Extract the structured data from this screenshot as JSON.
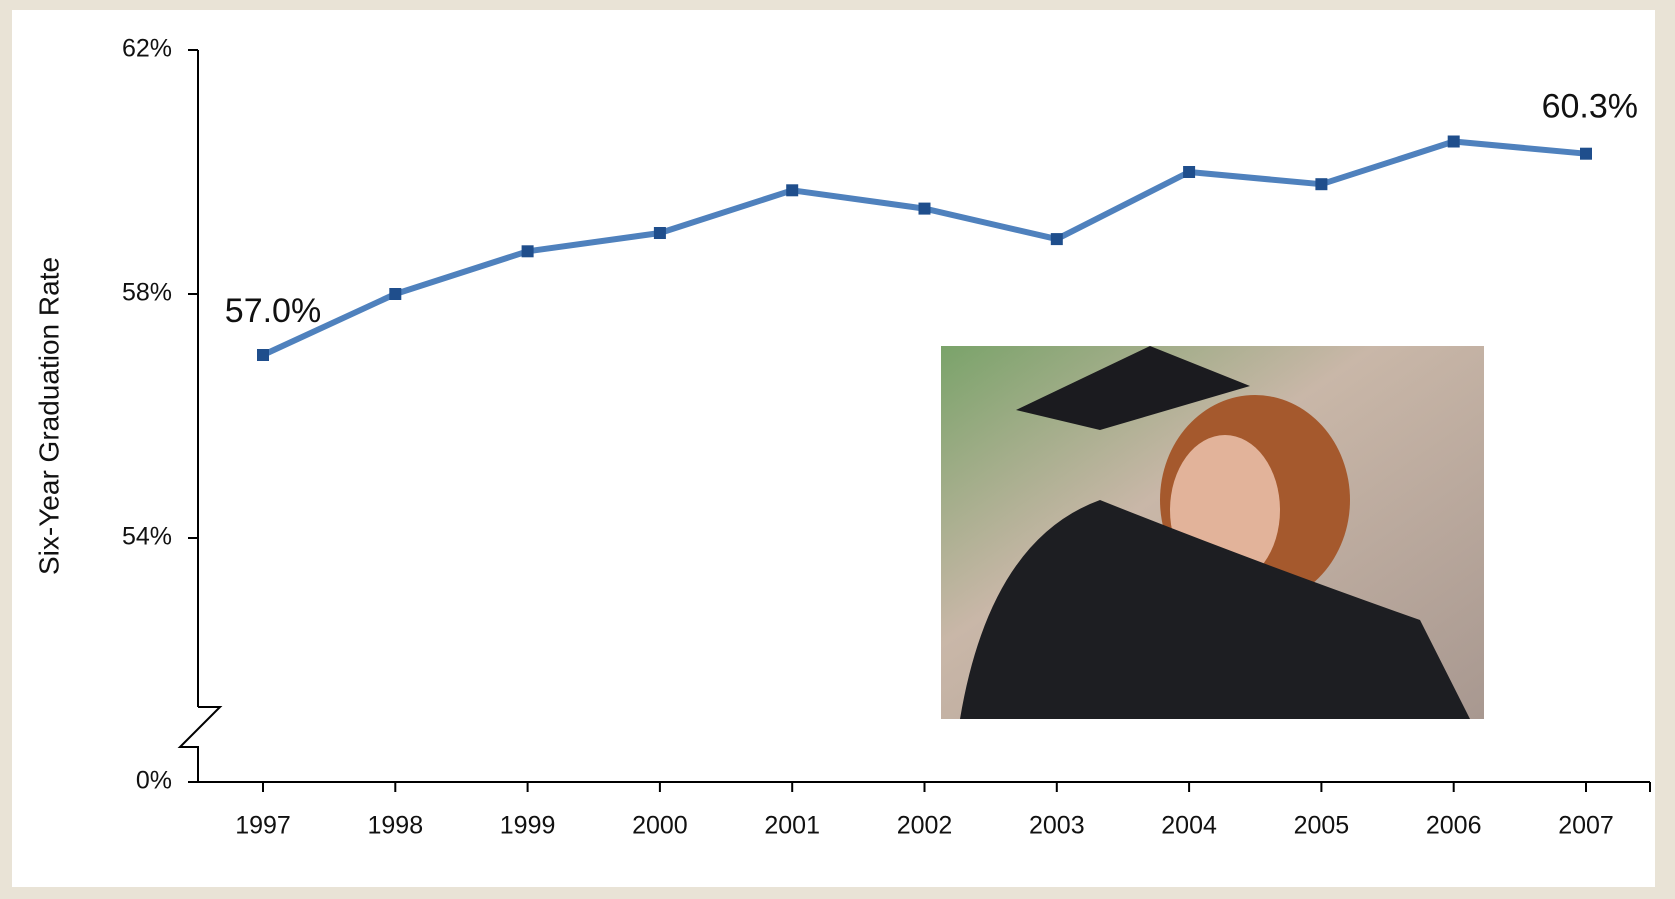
{
  "chart_data": {
    "type": "line",
    "y_label": "Six-Year Graduation Rate",
    "categories": [
      "1997",
      "1998",
      "1999",
      "2000",
      "2001",
      "2002",
      "2003",
      "2004",
      "2005",
      "2006",
      "2007"
    ],
    "series": [
      {
        "name": "Six-Year Graduation Rate",
        "color": "#4f81bd",
        "values": [
          57.0,
          58.0,
          58.7,
          59.0,
          59.7,
          59.4,
          58.9,
          60.0,
          59.8,
          60.5,
          60.3
        ],
        "value_labels": [
          "57.0%",
          null,
          null,
          null,
          null,
          null,
          null,
          null,
          null,
          null,
          "60.3%"
        ]
      }
    ],
    "ylim": [
      50,
      62
    ],
    "yticks": [
      {
        "value": 0,
        "label": "0%"
      },
      {
        "value": 54,
        "label": "54%"
      },
      {
        "value": 58,
        "label": "58%"
      },
      {
        "value": 62,
        "label": "62%"
      }
    ],
    "axis_break": true,
    "grid": false,
    "legend": false
  }
}
